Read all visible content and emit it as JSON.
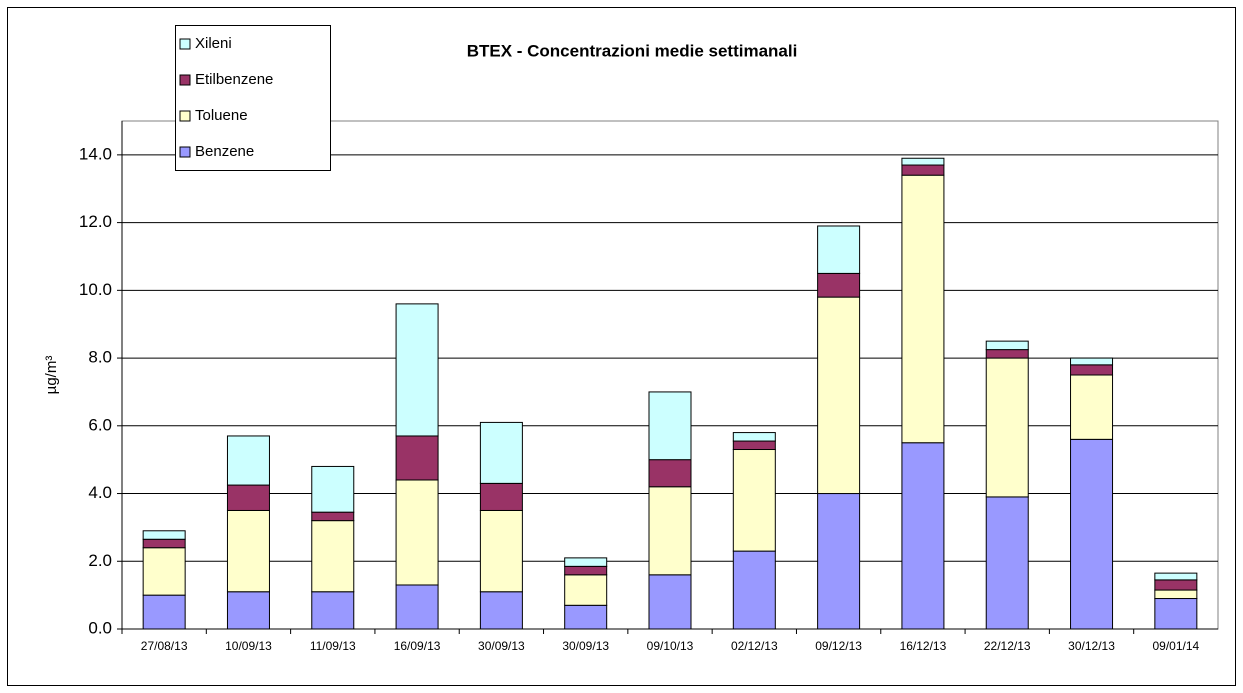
{
  "chart_data": {
    "type": "stacked-bar",
    "title": "BTEX - Concentrazioni medie settimanali",
    "y_label": "µg/m³",
    "categories": [
      "27/08/13",
      "10/09/13",
      "11/09/13",
      "16/09/13",
      "30/09/13",
      "30/09/13",
      "09/10/13",
      "02/12/13",
      "09/12/13",
      "16/12/13",
      "22/12/13",
      "30/12/13",
      "09/01/14"
    ],
    "series": [
      {
        "name": "Benzene",
        "color": "#9999ff",
        "values": [
          1.0,
          1.1,
          1.1,
          1.3,
          1.1,
          0.7,
          1.6,
          2.3,
          4.0,
          5.5,
          3.9,
          5.6,
          0.9
        ]
      },
      {
        "name": "Toluene",
        "color": "#ffffcc",
        "values": [
          1.4,
          2.4,
          2.1,
          3.1,
          2.4,
          0.9,
          2.6,
          3.0,
          5.8,
          7.9,
          4.1,
          1.9,
          0.25
        ]
      },
      {
        "name": "Etilbenzene",
        "color": "#993366",
        "values": [
          0.25,
          0.75,
          0.25,
          1.3,
          0.8,
          0.25,
          0.8,
          0.25,
          0.7,
          0.3,
          0.25,
          0.3,
          0.3
        ]
      },
      {
        "name": "Xileni",
        "color": "#ccffff",
        "values": [
          0.25,
          1.45,
          1.35,
          3.9,
          1.8,
          0.25,
          2.0,
          0.25,
          1.4,
          0.2,
          0.25,
          0.2,
          0.2
        ]
      }
    ],
    "ylim": [
      0,
      15
    ],
    "yticks": [
      {
        "value": 0,
        "label": "0.0"
      },
      {
        "value": 2,
        "label": "2.0"
      },
      {
        "value": 4,
        "label": "4.0"
      },
      {
        "value": 6,
        "label": "6.0"
      },
      {
        "value": 8,
        "label": "8.0"
      },
      {
        "value": 10,
        "label": "10.0"
      },
      {
        "value": 12,
        "label": "12.0"
      },
      {
        "value": 14,
        "label": "14.0"
      }
    ],
    "grid": true
  }
}
